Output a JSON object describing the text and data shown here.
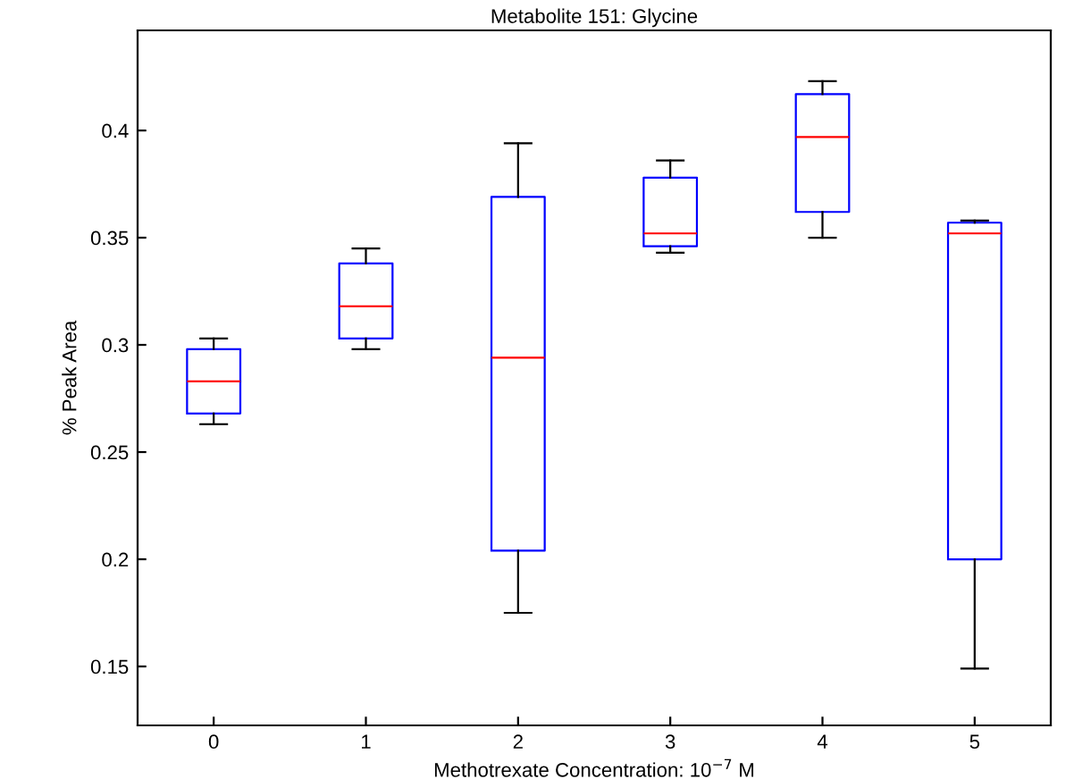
{
  "chart_data": {
    "type": "box",
    "title": "Metabolite 151: Glycine",
    "xlabel": "Methotrexate Concentration: 10$^{−7}$ M",
    "ylabel": "% Peak Area",
    "categories": [
      "0",
      "1",
      "2",
      "3",
      "4",
      "5"
    ],
    "boxes": [
      {
        "low": 0.263,
        "q1": 0.268,
        "median": 0.283,
        "q3": 0.298,
        "high": 0.303
      },
      {
        "low": 0.298,
        "q1": 0.303,
        "median": 0.318,
        "q3": 0.338,
        "high": 0.345
      },
      {
        "low": 0.175,
        "q1": 0.204,
        "median": 0.294,
        "q3": 0.369,
        "high": 0.394
      },
      {
        "low": 0.343,
        "q1": 0.346,
        "median": 0.352,
        "q3": 0.378,
        "high": 0.386
      },
      {
        "low": 0.35,
        "q1": 0.362,
        "median": 0.397,
        "q3": 0.417,
        "high": 0.423
      },
      {
        "low": 0.149,
        "q1": 0.2,
        "median": 0.352,
        "q3": 0.357,
        "high": 0.358
      }
    ],
    "color": "#0000ff",
    "ylim": [
      0.1225,
      0.4467
    ],
    "yticks": [
      0.15,
      0.2,
      0.25,
      0.3,
      0.35,
      0.4
    ],
    "grid": false,
    "legend": false
  }
}
